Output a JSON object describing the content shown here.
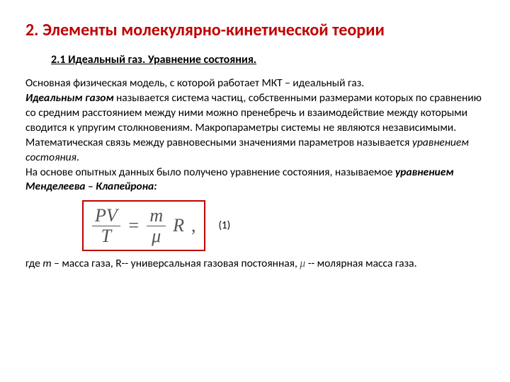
{
  "colors": {
    "title": "#c00000",
    "formula_border": "#c00000",
    "formula_text": "#555555",
    "body": "#000000",
    "background": "#ffffff"
  },
  "typography": {
    "title_fontsize": 24,
    "subtitle_fontsize": 16,
    "body_fontsize": 15.5,
    "formula_fontsize": 26
  },
  "title": "2. Элементы молекулярно-кинетической теории",
  "subtitle": "2.1 Идеальный газ. Уравнение состояния.",
  "para1_a": "Основная физическая модель, с которой работает  МКТ – идеальный газ.",
  "para1_b_bold": "Идеальным газом",
  "para1_b_rest": " называется система частиц, собственными размерами которых по сравнению со средним расстоянием между ними можно пренебречь и взаимодействие между которыми сводится к упругим столкновениям. Макропараметры системы не являются независимыми. Математическая связь между равновесными значениями параметров называется ",
  "para1_b_em": "уравнением состояния",
  "para1_b_dot": ".",
  "para2_a": "На основе опытных данных  было получено уравнение состояния, называемое ",
  "para2_b_em": "уравнением Менделеева – Клапейрона:",
  "formula": {
    "lhs_num": "PV",
    "lhs_den": "T",
    "eq": "=",
    "rhs_num": "m",
    "rhs_den": "μ",
    "R": "R",
    "comma": ","
  },
  "eq_number": "(1)",
  "footer_a": "где ",
  "footer_m": "m",
  "footer_b": " – масса газа,   R-- универсальная газовая постоянная,   ",
  "footer_mu": "μ",
  "footer_c": "  -- молярная масса газа."
}
